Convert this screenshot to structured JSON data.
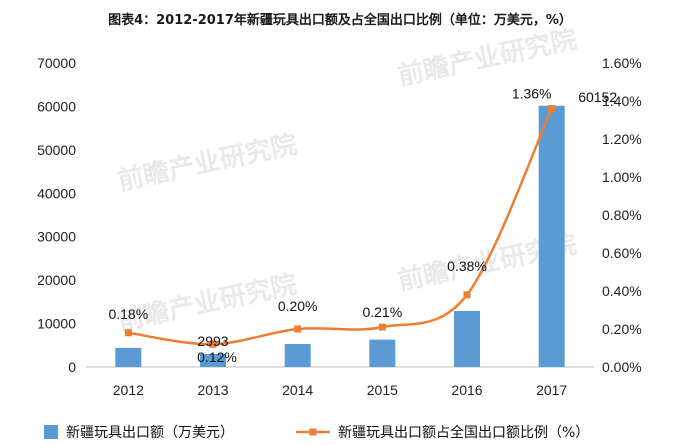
{
  "chart_data": {
    "type": "bar",
    "title": "图表4：2012-2017年新疆玩具出口额及占全国出口比例（单位：万美元，%）",
    "categories": [
      "2012",
      "2013",
      "2014",
      "2015",
      "2016",
      "2017"
    ],
    "series": [
      {
        "name": "新疆玩具出口额（万美元）",
        "type": "bar",
        "axis": "left",
        "color": "#5b9bd5",
        "values": [
          4400,
          2993,
          5300,
          6300,
          12900,
          60152
        ],
        "labels": [
          "",
          "2993",
          "",
          "",
          "",
          "60152"
        ]
      },
      {
        "name": "新疆玩具出口额占全国出口额比例（%）",
        "type": "line",
        "axis": "right",
        "color": "#ed7d31",
        "values": [
          0.18,
          0.12,
          0.2,
          0.21,
          0.38,
          1.36
        ],
        "labels": [
          "0.18%",
          "0.12%",
          "0.20%",
          "0.21%",
          "0.38%",
          "1.36%"
        ]
      }
    ],
    "ylim_left": [
      0,
      70000
    ],
    "ylim_right": [
      0,
      1.6
    ],
    "yticks_left": [
      "0",
      "10000",
      "20000",
      "30000",
      "40000",
      "50000",
      "60000",
      "70000"
    ],
    "yticks_right": [
      "0.00%",
      "0.20%",
      "0.40%",
      "0.60%",
      "0.80%",
      "1.00%",
      "1.20%",
      "1.40%",
      "1.60%"
    ],
    "grid": false,
    "legend": "bottom"
  },
  "watermark": "前瞻产业研究院"
}
